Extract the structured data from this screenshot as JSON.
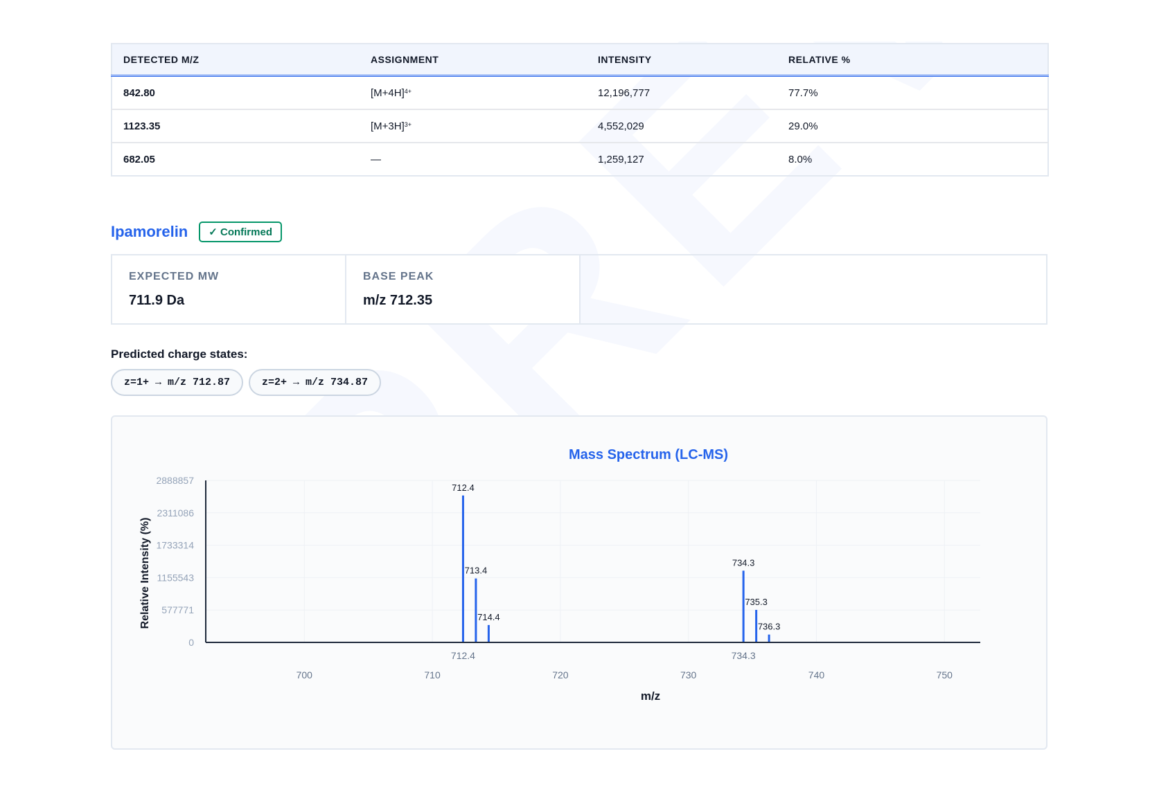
{
  "results_table": {
    "headers": [
      "DETECTED M/Z",
      "ASSIGNMENT",
      "INTENSITY",
      "RELATIVE %"
    ],
    "rows": [
      {
        "mz": "842.80",
        "assignment_base": "[M+4H]",
        "assignment_charge": "4+",
        "intensity": "12,196,777",
        "relative": "77.7%"
      },
      {
        "mz": "1123.35",
        "assignment_base": "[M+3H]",
        "assignment_charge": "3+",
        "intensity": "4,552,029",
        "relative": "29.0%"
      },
      {
        "mz": "682.05",
        "assignment_base": "—",
        "assignment_charge": "",
        "intensity": "1,259,127",
        "relative": "8.0%"
      }
    ]
  },
  "peptide": {
    "name": "Ipamorelin",
    "status_badge": "✓ Confirmed",
    "expected_mw_label": "EXPECTED MW",
    "expected_mw_value": "711.9 Da",
    "base_peak_label": "BASE PEAK",
    "base_peak_value": "m/z 712.35"
  },
  "charge_states": {
    "title": "Predicted charge states:",
    "chips": [
      "z=1+ → m/z 712.87",
      "z=2+ → m/z 734.87"
    ]
  },
  "colors": {
    "accent": "#2563eb",
    "confirmed": "#059669",
    "axis": "#1e293b",
    "tick_text": "#94a3b8"
  },
  "chart_data": {
    "type": "bar",
    "title": "Mass Spectrum (LC-MS)",
    "xlabel": "m/z",
    "ylabel": "Relative Intensity (%)",
    "xlim": [
      692.3,
      752.8
    ],
    "ylim": [
      0,
      2888857
    ],
    "x_ticks": [
      700,
      710,
      720,
      730,
      740,
      750
    ],
    "y_ticks": [
      0,
      577771,
      1155543,
      1733314,
      2311086,
      2888857
    ],
    "grid": true,
    "highlight_ticks": [
      {
        "x": 712.4,
        "label": "712.4"
      },
      {
        "x": 734.3,
        "label": "734.3"
      }
    ],
    "peaks": [
      {
        "x": 712.4,
        "y": 2620000,
        "label": "712.4"
      },
      {
        "x": 713.4,
        "y": 1140000,
        "label": "713.4"
      },
      {
        "x": 714.4,
        "y": 310000,
        "label": "714.4"
      },
      {
        "x": 734.3,
        "y": 1280000,
        "label": "734.3"
      },
      {
        "x": 735.3,
        "y": 580000,
        "label": "735.3"
      },
      {
        "x": 736.3,
        "y": 140000,
        "label": "736.3"
      }
    ]
  }
}
